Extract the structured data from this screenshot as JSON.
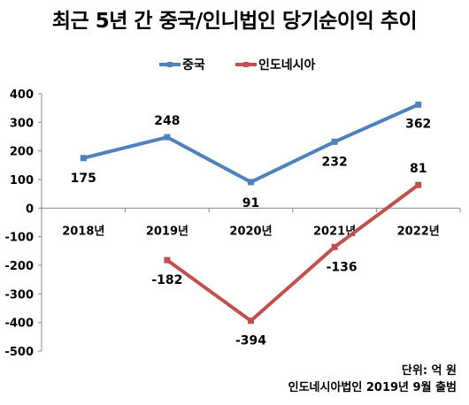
{
  "chart_data": {
    "type": "line",
    "title": "최근 5년 간 중국/인니법인 당기순이익 추이",
    "categories": [
      "2018년",
      "2019년",
      "2020년",
      "2021년",
      "2022년"
    ],
    "series": [
      {
        "name": "중국",
        "color": "#4f81bd",
        "values": [
          175,
          248,
          91,
          232,
          362
        ]
      },
      {
        "name": "인도네시아",
        "color": "#c0504d",
        "values": [
          null,
          -182,
          -394,
          -136,
          81
        ]
      }
    ],
    "y_ticks": [
      "400",
      "300",
      "200",
      "100",
      "0",
      "-100",
      "-200",
      "-300",
      "-400",
      "-500"
    ],
    "ylim": [
      -500,
      400
    ],
    "xlabel": "",
    "ylabel": "",
    "grid": false,
    "legend": "top-center"
  },
  "footnote": {
    "unit": "단위: 억 원",
    "source": "인도네시아법인 2019년 9월 출범"
  }
}
